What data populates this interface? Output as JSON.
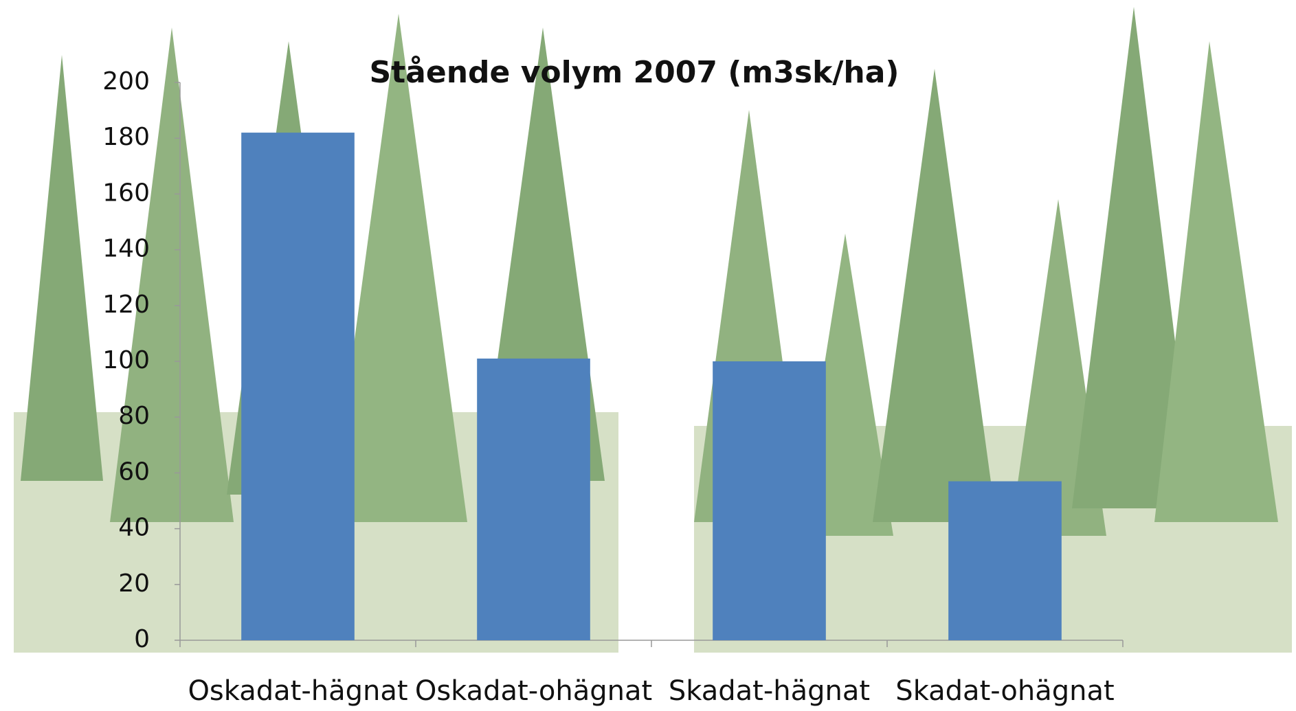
{
  "chart_data": {
    "type": "bar",
    "title": "Stående volym 2007 (m3sk/ha)",
    "categories": [
      "Oskadat-hägnat",
      "Oskadat-ohägnat",
      "Skadat-hägnat",
      "Skadat-ohägnat"
    ],
    "values": [
      182,
      101,
      100,
      57
    ],
    "color": "#4f81bd",
    "ylim": [
      0,
      200
    ],
    "yticks": [
      0,
      20,
      40,
      60,
      80,
      100,
      120,
      140,
      160,
      180,
      200
    ],
    "grid": false
  }
}
